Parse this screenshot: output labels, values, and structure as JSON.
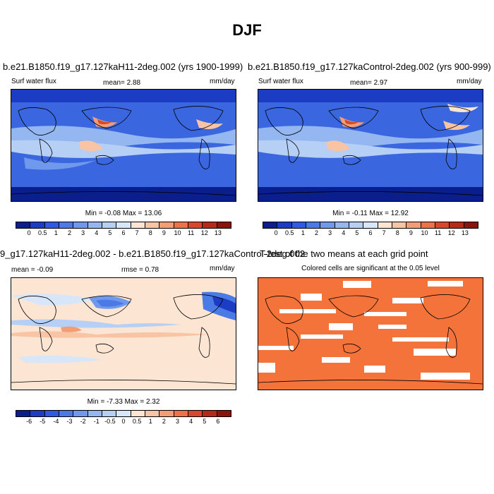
{
  "title": "DJF",
  "palette_abs": [
    "#0a1e8c",
    "#1d3cc4",
    "#2f5be0",
    "#4a7ae6",
    "#6f99ec",
    "#94b6f1",
    "#b6cff5",
    "#d8e6fa",
    "#fde5d4",
    "#f8c4a4",
    "#f39d74",
    "#ec7347",
    "#d9482a",
    "#b52a17",
    "#8a130a"
  ],
  "palette_diff": [
    "#0a1e8c",
    "#1d3cc4",
    "#2f5be0",
    "#4a7ae6",
    "#6f99ec",
    "#94b6f1",
    "#b6cff5",
    "#d8e6fa",
    "#fde5d4",
    "#f8c4a4",
    "#f39d74",
    "#ec7347",
    "#d9482a",
    "#b52a17",
    "#8a130a"
  ],
  "signif_color": "#f4733a",
  "panels": {
    "p1": {
      "title": "b.e21.B1850.f19_g17.127kaH11-2deg.002 (yrs 1900-1999)",
      "left_label": "Surf water flux",
      "center_label": "mean=  2.88",
      "right_label": "mm/day",
      "minmax": "Min =  -0.08 Max =  13.06",
      "ticks": [
        "0",
        "0.5",
        "1",
        "2",
        "3",
        "4",
        "5",
        "6",
        "7",
        "8",
        "9",
        "10",
        "11",
        "12",
        "13"
      ]
    },
    "p2": {
      "title": "b.e21.B1850.f19_g17.127kaControl-2deg.002 (yrs 900-999)",
      "left_label": "Surf water flux",
      "center_label": "mean=  2.97",
      "right_label": "mm/day",
      "minmax": "Min =  -0.11 Max =  12.92",
      "ticks": [
        "0",
        "0.5",
        "1",
        "2",
        "3",
        "4",
        "5",
        "6",
        "7",
        "8",
        "9",
        "10",
        "11",
        "12",
        "13"
      ]
    },
    "p3": {
      "title": "9_g17.127kaH11-2deg.002 - b.e21.B1850.f19_g17.127kaControl-2deg.002",
      "left_label": "mean =  -0.09",
      "center_label": "rmse =   0.78",
      "right_label": "mm/day",
      "minmax": "Min =  -7.33 Max =   2.32",
      "ticks": [
        "-6",
        "-5",
        "-4",
        "-3",
        "-2",
        "-1",
        "-0.5",
        "0",
        "0.5",
        "1",
        "2",
        "3",
        "4",
        "5",
        "6"
      ]
    },
    "p4": {
      "title": "T-test of the two means at each grid point",
      "subtitle": "Colored cells are significant at the 0.05 level"
    }
  }
}
